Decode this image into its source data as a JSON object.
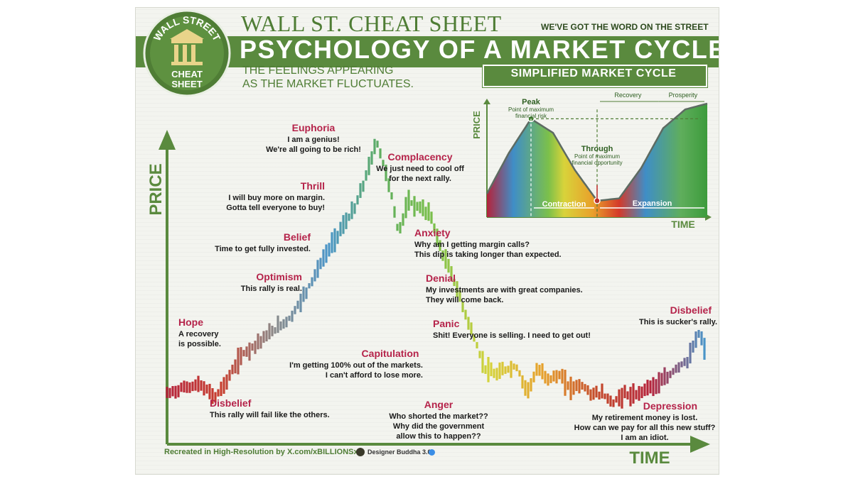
{
  "header": {
    "brand": "WALL ST. CHEAT SHEET",
    "tagline": "WE'VE GOT THE WORD ON THE STREET",
    "title": "PSYCHOLOGY OF A MARKET CYCLE",
    "subtitle_line1": "THE FEELINGS APPEARING",
    "subtitle_line2": "AS THE MARKET FLUCTUATES."
  },
  "logo": {
    "top_text": "WALL STREET",
    "bottom_text_1": "CHEAT",
    "bottom_text_2": "SHEET"
  },
  "colors": {
    "brand_green": "#5a8a3e",
    "label_red": "#b5234a",
    "text_dark": "#1a1a1a"
  },
  "footer": {
    "credit": "Recreated in High-Resolution by X.com/xBILLIONSx",
    "designer": "Designer Buddha 3.0"
  },
  "chart_data": [
    {
      "type": "line",
      "xlabel": "TIME",
      "ylabel": "PRICE",
      "stages": [
        {
          "name": "Disbelief",
          "text": [
            "This rally will fail like the others."
          ]
        },
        {
          "name": "Hope",
          "text": [
            "A recovery",
            "is possible."
          ]
        },
        {
          "name": "Optimism",
          "text": [
            "This rally is real."
          ]
        },
        {
          "name": "Belief",
          "text": [
            "Time to get fully invested."
          ]
        },
        {
          "name": "Thrill",
          "text": [
            "I will buy more on margin.",
            "Gotta tell everyone to buy!"
          ]
        },
        {
          "name": "Euphoria",
          "text": [
            "I am a genius!",
            "We're all going to be rich!"
          ]
        },
        {
          "name": "Complacency",
          "text": [
            "We just need to cool off",
            "for the next rally."
          ]
        },
        {
          "name": "Anxiety",
          "text": [
            "Why am I getting margin calls?",
            "This dip is taking longer than expected."
          ]
        },
        {
          "name": "Denial",
          "text": [
            "My investments are with great companies.",
            "They will come back."
          ]
        },
        {
          "name": "Panic",
          "text": [
            "Shit! Everyone is selling. I need to get out!"
          ]
        },
        {
          "name": "Capitulation",
          "text": [
            "I'm getting 100% out of the markets.",
            "I can't afford to lose more."
          ]
        },
        {
          "name": "Anger",
          "text": [
            "Who shorted the market??",
            "Why did the government",
            "allow this to happen??"
          ]
        },
        {
          "name": "Depression",
          "text": [
            "My retirement money is lost.",
            "How can we pay for all this new stuff?",
            "I am an idiot."
          ]
        },
        {
          "name": "Disbelief",
          "text": [
            "This is sucker's rally."
          ]
        }
      ],
      "x": [
        0,
        0.03,
        0.06,
        0.09,
        0.11,
        0.14,
        0.17,
        0.2,
        0.23,
        0.26,
        0.29,
        0.32,
        0.35,
        0.37,
        0.39,
        0.41,
        0.42,
        0.43,
        0.45,
        0.47,
        0.49,
        0.51,
        0.53,
        0.55,
        0.57,
        0.59,
        0.61,
        0.63,
        0.65,
        0.67,
        0.69,
        0.71,
        0.73,
        0.75,
        0.77,
        0.79,
        0.81,
        0.83,
        0.85,
        0.87,
        0.89,
        0.91,
        0.93,
        0.95,
        0.97,
        0.99,
        1.0
      ],
      "y": [
        0.13,
        0.15,
        0.16,
        0.12,
        0.17,
        0.26,
        0.3,
        0.34,
        0.38,
        0.47,
        0.57,
        0.66,
        0.74,
        0.84,
        0.96,
        0.84,
        0.76,
        0.66,
        0.76,
        0.74,
        0.72,
        0.6,
        0.52,
        0.42,
        0.32,
        0.22,
        0.19,
        0.21,
        0.22,
        0.14,
        0.21,
        0.18,
        0.19,
        0.15,
        0.16,
        0.13,
        0.13,
        0.1,
        0.13,
        0.12,
        0.15,
        0.16,
        0.18,
        0.22,
        0.24,
        0.33,
        0.28
      ],
      "colors_along_curve": [
        "#b5233b",
        "#c83f2f",
        "#8a8a8a",
        "#4b95c8",
        "#5fae5c",
        "#7cc04a",
        "#d5d33a",
        "#e6a02c",
        "#c44a2a",
        "#b5233b",
        "#4b95c8"
      ]
    },
    {
      "type": "area",
      "title": "SIMPLIFIED MARKET CYCLE",
      "xlabel": "TIME",
      "ylabel": "PRICE",
      "x": [
        0,
        0.1,
        0.2,
        0.3,
        0.4,
        0.5,
        0.6,
        0.7,
        0.8,
        0.9,
        1.0
      ],
      "y": [
        0.2,
        0.55,
        0.84,
        0.72,
        0.4,
        0.14,
        0.16,
        0.42,
        0.76,
        0.92,
        0.97
      ],
      "annotations": {
        "peak": {
          "label": "Peak",
          "detail_1": "Point of maximum",
          "detail_2": "financial risk"
        },
        "trough": {
          "label": "Through",
          "detail_1": "Point of maximum",
          "detail_2": "financial opportunity"
        },
        "phases": [
          "Contraction",
          "Expansion",
          "Recovery",
          "Prosperity"
        ]
      }
    }
  ]
}
